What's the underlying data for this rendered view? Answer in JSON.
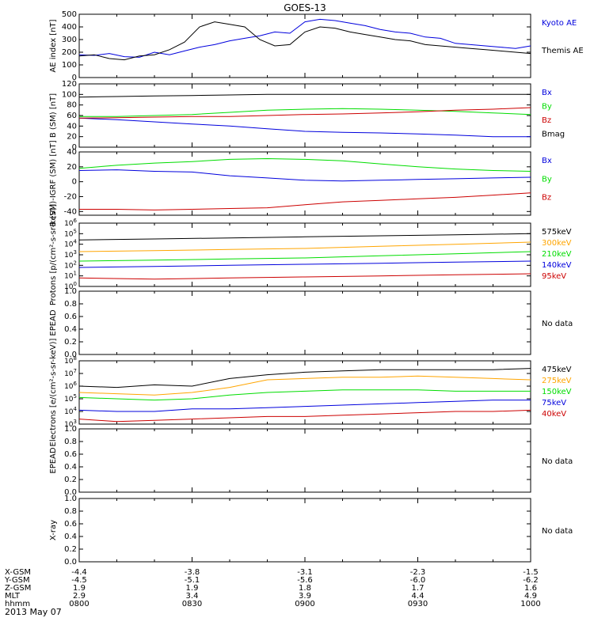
{
  "title": "GOES-13",
  "date": "2013 May 07",
  "colors": {
    "black": "#000000",
    "blue": "#0000dd",
    "green": "#00dd00",
    "red": "#cc0000",
    "orange": "#ffa500"
  },
  "xaxis": {
    "row_labels": [
      "X-GSM",
      "Y-GSM",
      "Z-GSM",
      "MLT",
      "hhmm"
    ],
    "columns": [
      [
        "-4.4",
        "-4.5",
        "1.9",
        "2.9",
        "0800"
      ],
      [
        "-3.8",
        "-5.1",
        "1.9",
        "3.4",
        "0830"
      ],
      [
        "-3.1",
        "-5.6",
        "1.8",
        "3.9",
        "0900"
      ],
      [
        "-2.3",
        "-6.0",
        "1.7",
        "4.4",
        "0930"
      ],
      [
        "-1.5",
        "-6.2",
        "1.6",
        "4.9",
        "1000"
      ]
    ]
  },
  "chart_data": [
    {
      "type": "line",
      "panel": "ae",
      "ylabel": "AE index [nT]",
      "ylim": [
        0,
        500
      ],
      "yticks": [
        "0",
        "100",
        "200",
        "300",
        "400",
        "500"
      ],
      "x_range": [
        "0800",
        "1000"
      ],
      "series": [
        {
          "name": "Kyoto AE",
          "color": "blue",
          "x": [
            0,
            4,
            8,
            12,
            16,
            20,
            24,
            28,
            32,
            36,
            40,
            44,
            48,
            52,
            56,
            60,
            64,
            68,
            72,
            76,
            80,
            84,
            88,
            92,
            96,
            100,
            104,
            108,
            112,
            116,
            120
          ],
          "values": [
            180,
            175,
            190,
            165,
            160,
            200,
            180,
            210,
            240,
            260,
            290,
            310,
            330,
            360,
            350,
            440,
            460,
            450,
            430,
            410,
            380,
            360,
            350,
            320,
            310,
            270,
            260,
            250,
            240,
            230,
            250
          ]
        },
        {
          "name": "Themis AE",
          "color": "black",
          "x": [
            0,
            4,
            8,
            12,
            16,
            20,
            24,
            28,
            32,
            36,
            40,
            44,
            48,
            52,
            56,
            60,
            64,
            68,
            72,
            76,
            80,
            84,
            88,
            92,
            96,
            100,
            104,
            108,
            112,
            116,
            120
          ],
          "values": [
            170,
            180,
            150,
            140,
            170,
            180,
            220,
            280,
            400,
            440,
            420,
            400,
            300,
            250,
            260,
            360,
            400,
            390,
            360,
            340,
            320,
            300,
            290,
            260,
            250,
            240,
            230,
            220,
            210,
            200,
            190
          ]
        }
      ]
    },
    {
      "type": "line",
      "panel": "b",
      "ylabel": "B (SM) [nT]",
      "ylim": [
        0,
        120
      ],
      "yticks": [
        "0",
        "20",
        "40",
        "60",
        "80",
        "100",
        "120"
      ],
      "series": [
        {
          "name": "Bx",
          "color": "blue",
          "x": [
            0,
            10,
            20,
            30,
            40,
            50,
            60,
            70,
            80,
            90,
            100,
            110,
            120
          ],
          "values": [
            55,
            52,
            48,
            44,
            40,
            35,
            30,
            28,
            27,
            25,
            23,
            20,
            20
          ]
        },
        {
          "name": "By",
          "color": "green",
          "x": [
            0,
            10,
            20,
            30,
            40,
            50,
            60,
            70,
            80,
            90,
            100,
            110,
            120
          ],
          "values": [
            58,
            58,
            60,
            62,
            66,
            70,
            72,
            73,
            72,
            70,
            68,
            65,
            62
          ]
        },
        {
          "name": "Bz",
          "color": "red",
          "x": [
            0,
            10,
            20,
            30,
            40,
            50,
            60,
            70,
            80,
            90,
            100,
            110,
            120
          ],
          "values": [
            55,
            56,
            57,
            58,
            58,
            60,
            62,
            63,
            65,
            67,
            70,
            72,
            75
          ]
        },
        {
          "name": "Bmag",
          "color": "black",
          "x": [
            0,
            10,
            20,
            30,
            40,
            50,
            60,
            70,
            80,
            90,
            100,
            110,
            120
          ],
          "values": [
            95,
            96,
            97,
            98,
            99,
            100,
            100,
            100,
            100,
            100,
            100,
            100,
            100
          ]
        }
      ]
    },
    {
      "type": "line",
      "panel": "bdiff",
      "ylabel": "B (SM)-IGRF (SM) [nT]",
      "ylim": [
        -45,
        40
      ],
      "yticks": [
        "-40",
        "-20",
        "0",
        "20",
        "40"
      ],
      "series": [
        {
          "name": "Bx",
          "color": "blue",
          "x": [
            0,
            10,
            20,
            30,
            40,
            50,
            60,
            70,
            80,
            90,
            100,
            110,
            120
          ],
          "values": [
            15,
            16,
            14,
            13,
            8,
            5,
            2,
            1,
            2,
            3,
            4,
            5,
            6
          ]
        },
        {
          "name": "By",
          "color": "green",
          "x": [
            0,
            10,
            20,
            30,
            40,
            50,
            60,
            70,
            80,
            90,
            100,
            110,
            120
          ],
          "values": [
            18,
            22,
            25,
            27,
            30,
            31,
            30,
            28,
            24,
            20,
            17,
            15,
            14
          ]
        },
        {
          "name": "Bz",
          "color": "red",
          "x": [
            0,
            10,
            20,
            30,
            40,
            50,
            60,
            70,
            80,
            90,
            100,
            110,
            120
          ],
          "values": [
            -37,
            -37,
            -38,
            -37,
            -36,
            -35,
            -31,
            -27,
            -25,
            -23,
            -21,
            -18,
            -15
          ]
        }
      ]
    },
    {
      "type": "line",
      "panel": "protons",
      "ylabel": "Protons [p/(cm²-s-sr-keV)]",
      "yscale": "log",
      "ylim": [
        0,
        6
      ],
      "series": [
        {
          "name": "575keV",
          "color": "black",
          "x": [
            0,
            20,
            40,
            60,
            80,
            100,
            120
          ],
          "values": [
            4.4,
            4.5,
            4.6,
            4.7,
            4.8,
            4.9,
            5.0
          ]
        },
        {
          "name": "300keV",
          "color": "orange",
          "x": [
            0,
            20,
            40,
            60,
            80,
            100,
            120
          ],
          "values": [
            3.3,
            3.4,
            3.5,
            3.6,
            3.8,
            4.0,
            4.2
          ]
        },
        {
          "name": "210keV",
          "color": "green",
          "x": [
            0,
            20,
            40,
            60,
            80,
            100,
            120
          ],
          "values": [
            2.4,
            2.5,
            2.6,
            2.7,
            2.9,
            3.1,
            3.3
          ]
        },
        {
          "name": "140keV",
          "color": "blue",
          "x": [
            0,
            20,
            40,
            60,
            80,
            100,
            120
          ],
          "values": [
            1.8,
            1.9,
            2.0,
            2.1,
            2.2,
            2.3,
            2.4
          ]
        },
        {
          "name": "95keV",
          "color": "red",
          "x": [
            0,
            20,
            40,
            60,
            80,
            100,
            120
          ],
          "values": [
            0.8,
            0.7,
            0.8,
            0.9,
            1.0,
            1.1,
            1.2
          ]
        }
      ]
    },
    {
      "type": "line",
      "panel": "epead_p",
      "ylabel": "EPEAD",
      "ylim": [
        0,
        1
      ],
      "yticks": [
        "0.0",
        "0.2",
        "0.4",
        "0.6",
        "0.8",
        "1.0"
      ],
      "series": [],
      "annotation": "No data"
    },
    {
      "type": "line",
      "panel": "electrons",
      "ylabel": "Electrons [e/(cm²-s-sr-keV)]",
      "yscale": "log",
      "ylim": [
        3,
        8
      ],
      "series": [
        {
          "name": "475keV",
          "color": "black",
          "x": [
            0,
            10,
            20,
            30,
            40,
            50,
            60,
            70,
            80,
            90,
            100,
            110,
            120
          ],
          "values": [
            6.0,
            5.9,
            6.1,
            6.0,
            6.6,
            6.9,
            7.1,
            7.2,
            7.3,
            7.3,
            7.3,
            7.3,
            7.4
          ]
        },
        {
          "name": "275keV",
          "color": "orange",
          "x": [
            0,
            10,
            20,
            30,
            40,
            50,
            60,
            70,
            80,
            90,
            100,
            110,
            120
          ],
          "values": [
            5.5,
            5.4,
            5.3,
            5.5,
            5.9,
            6.5,
            6.6,
            6.7,
            6.7,
            6.8,
            6.7,
            6.6,
            6.5
          ]
        },
        {
          "name": "150keV",
          "color": "green",
          "x": [
            0,
            10,
            20,
            30,
            40,
            50,
            60,
            70,
            80,
            90,
            100,
            110,
            120
          ],
          "values": [
            5.1,
            5.0,
            4.9,
            5.0,
            5.3,
            5.5,
            5.6,
            5.7,
            5.7,
            5.7,
            5.6,
            5.6,
            5.6
          ]
        },
        {
          "name": "75keV",
          "color": "blue",
          "x": [
            0,
            10,
            20,
            30,
            40,
            50,
            60,
            70,
            80,
            90,
            100,
            110,
            120
          ],
          "values": [
            4.1,
            4.0,
            4.0,
            4.2,
            4.2,
            4.3,
            4.4,
            4.5,
            4.6,
            4.7,
            4.8,
            4.9,
            4.9
          ]
        },
        {
          "name": "40keV",
          "color": "red",
          "x": [
            0,
            10,
            20,
            30,
            40,
            50,
            60,
            70,
            80,
            90,
            100,
            110,
            120
          ],
          "values": [
            3.4,
            3.2,
            3.3,
            3.4,
            3.5,
            3.6,
            3.6,
            3.7,
            3.8,
            3.9,
            4.0,
            4.0,
            4.1
          ]
        }
      ]
    },
    {
      "type": "line",
      "panel": "epead_e",
      "ylabel": "EPEAD",
      "ylim": [
        0,
        1
      ],
      "yticks": [
        "0.0",
        "0.2",
        "0.4",
        "0.6",
        "0.8",
        "1.0"
      ],
      "series": [],
      "annotation": "No data"
    },
    {
      "type": "line",
      "panel": "xray",
      "ylabel": "X-ray",
      "ylim": [
        0,
        1
      ],
      "yticks": [
        "0.0",
        "0.2",
        "0.4",
        "0.6",
        "0.8",
        "1.0"
      ],
      "series": [],
      "annotation": "No data"
    }
  ]
}
